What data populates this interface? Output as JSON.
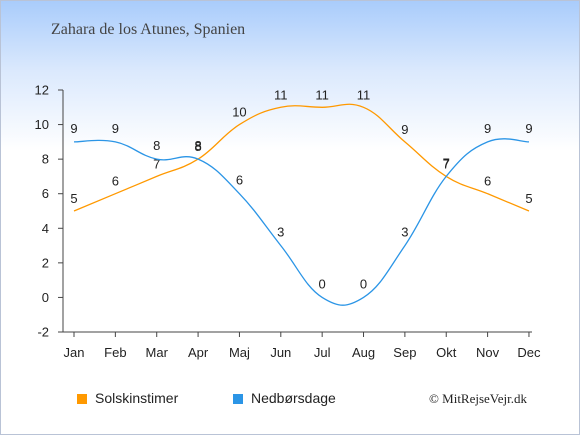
{
  "chart_data": {
    "type": "line",
    "title": "Zahara de los Atunes, Spanien",
    "categories": [
      "Jan",
      "Feb",
      "Mar",
      "Apr",
      "Maj",
      "Jun",
      "Jul",
      "Aug",
      "Sep",
      "Okt",
      "Nov",
      "Dec"
    ],
    "series": [
      {
        "name": "Solskinstimer",
        "color": "#ff9900",
        "values": [
          5,
          6,
          7,
          8,
          10,
          11,
          11,
          11,
          9,
          7,
          6,
          5
        ]
      },
      {
        "name": "Nedbørsdage",
        "color": "#2b95e6",
        "values": [
          9,
          9,
          8,
          8,
          6,
          3,
          0,
          0,
          3,
          7,
          9,
          9
        ]
      }
    ],
    "ylim": [
      -2,
      12
    ],
    "yticks": [
      -2,
      0,
      2,
      4,
      6,
      8,
      10,
      12
    ],
    "xlabel": "",
    "ylabel": "",
    "grid": false,
    "legend_position": "bottom-left"
  },
  "copyright": "© MitRejseVejr.dk"
}
